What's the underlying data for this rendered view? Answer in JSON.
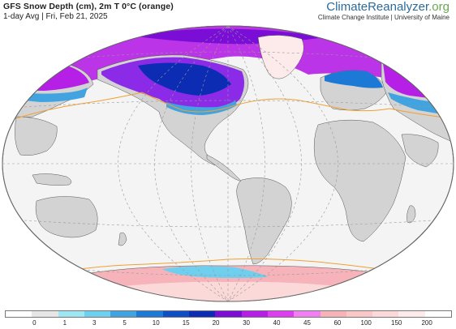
{
  "header": {
    "title": "GFS Snow Depth (cm), 2m T 0°C (orange)",
    "subtitle": "1-day Avg | Fri, Feb 21, 2025"
  },
  "brand": {
    "name_part1": "ClimateReanalyzer",
    "name_part2": ".org",
    "sub": "Climate Change Institute | University of Maine"
  },
  "colors": {
    "ocean": "#f4f4f4",
    "land": "#d3d3d3",
    "isotherm": "#f0a030",
    "border": "#555555"
  },
  "legend": {
    "colors": [
      "#ffffff",
      "#e6e6e6",
      "#9fe6f3",
      "#6fcfee",
      "#41a3e0",
      "#1c79d6",
      "#0f4ec4",
      "#0b2cb3",
      "#7a0dd6",
      "#b51fe6",
      "#dd3ff0",
      "#f07ff2",
      "#f6b3b9",
      "#f9c7c7",
      "#fbd9d9",
      "#fdeaea",
      "#fefefe"
    ],
    "labels": [
      "0",
      "1",
      "3",
      "5",
      "10",
      "15",
      "20",
      "30",
      "40",
      "45",
      "60",
      "100",
      "150",
      "200"
    ]
  }
}
